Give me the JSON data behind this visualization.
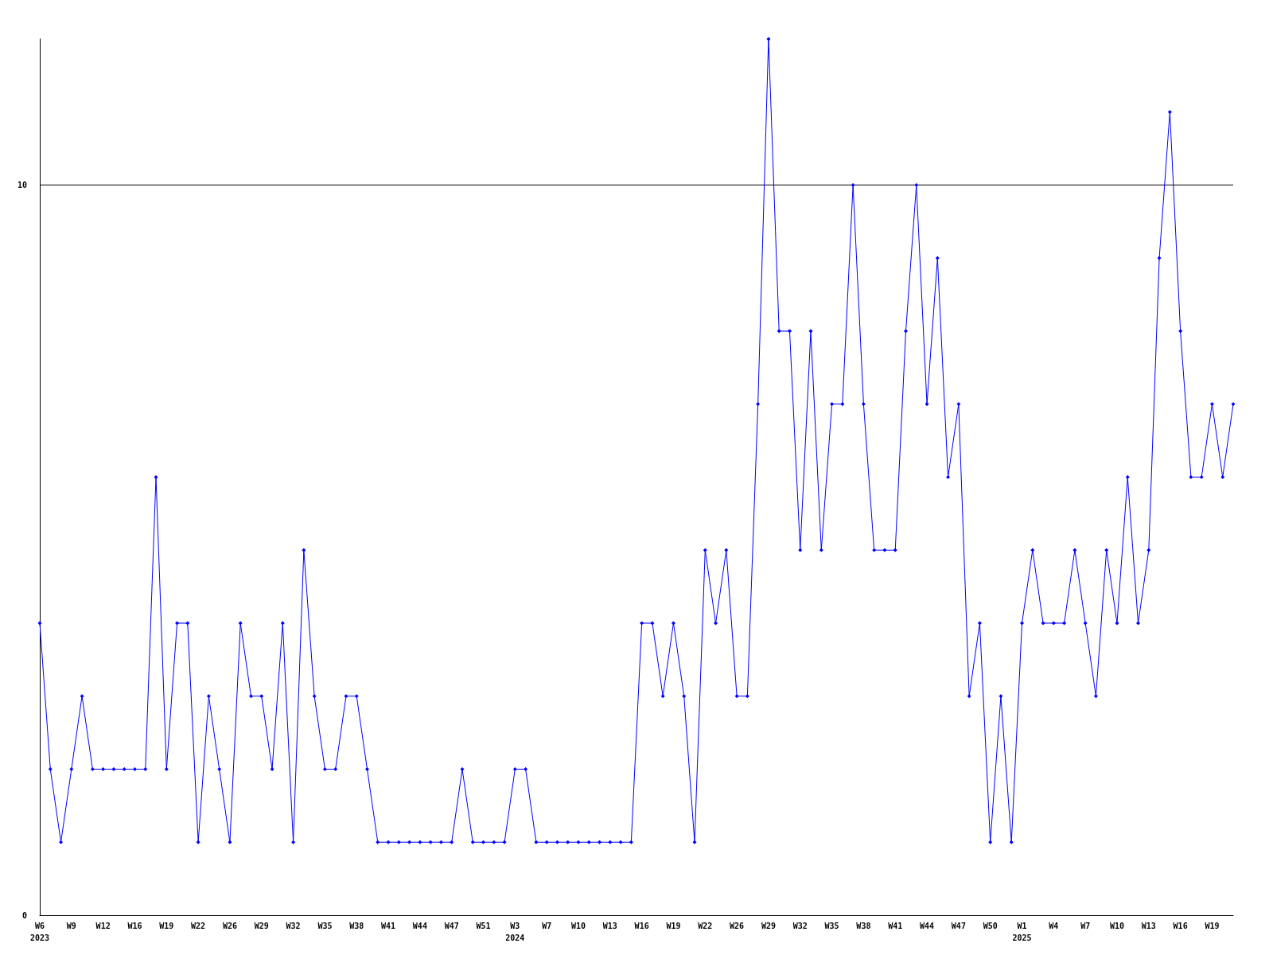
{
  "chart_data": {
    "type": "line",
    "categories": [
      "W6\n2023",
      null,
      null,
      "W9",
      null,
      null,
      "W12",
      null,
      null,
      "W16",
      null,
      null,
      "W19",
      null,
      null,
      "W22",
      null,
      null,
      "W26",
      null,
      null,
      "W29",
      null,
      null,
      "W32",
      null,
      null,
      "W35",
      null,
      null,
      "W38",
      null,
      null,
      "W41",
      null,
      null,
      "W44",
      null,
      null,
      "W47",
      null,
      null,
      "W51",
      null,
      null,
      "W3\n2024",
      null,
      null,
      "W7",
      null,
      null,
      "W10",
      null,
      null,
      "W13",
      null,
      null,
      "W16",
      null,
      null,
      "W19",
      null,
      null,
      "W22",
      null,
      null,
      "W26",
      null,
      null,
      "W29",
      null,
      null,
      "W32",
      null,
      null,
      "W35",
      null,
      null,
      "W38",
      null,
      null,
      "W41",
      null,
      null,
      "W44",
      null,
      null,
      "W47",
      null,
      null,
      "W50",
      null,
      null,
      "W1\n2025",
      null,
      null,
      "W4",
      null,
      null,
      "W7",
      null,
      null,
      "W10",
      null,
      null,
      "W13",
      null,
      null,
      "W16",
      null,
      null,
      "W19",
      null,
      null
    ],
    "series": [
      {
        "color": "#0000ff",
        "values": [
          4,
          2,
          1,
          2,
          3,
          2,
          2,
          2,
          2,
          2,
          2,
          6,
          2,
          4,
          4,
          1,
          3,
          2,
          1,
          4,
          3,
          3,
          2,
          4,
          1,
          5,
          3,
          2,
          2,
          3,
          3,
          2,
          1,
          1,
          1,
          1,
          1,
          1,
          1,
          1,
          2,
          1,
          1,
          1,
          1,
          2,
          2,
          1,
          1,
          1,
          1,
          1,
          1,
          1,
          1,
          1,
          1,
          4,
          4,
          3,
          4,
          3,
          1,
          5,
          4,
          5,
          3,
          3,
          7,
          12,
          8,
          8,
          5,
          8,
          5,
          7,
          7,
          10,
          7,
          5,
          5,
          5,
          8,
          10,
          7,
          9,
          6,
          7,
          3,
          4,
          1,
          3,
          1,
          4,
          5,
          4,
          4,
          4,
          5,
          4,
          3,
          5,
          4,
          6,
          4,
          5,
          9,
          11,
          8,
          6,
          6,
          7,
          6,
          7
        ]
      }
    ],
    "ylim": [
      0,
      12
    ],
    "yticks": [
      0,
      10
    ],
    "grid": "y",
    "marker": "diamond",
    "line_style": "solid"
  }
}
